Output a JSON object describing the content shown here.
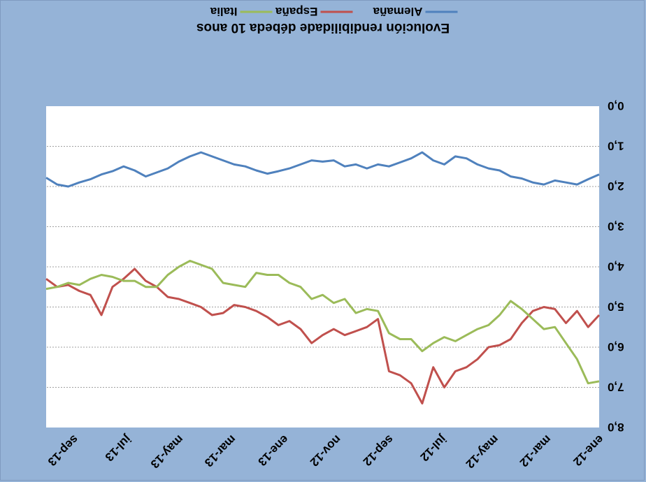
{
  "chart_data": {
    "type": "line",
    "title": "Evolución rendibilidade débeda 10 anos",
    "y_axis": {
      "reversed": true,
      "ylim": [
        0,
        8
      ],
      "ticks": [
        "0,0",
        "1,0",
        "2,0",
        "3,0",
        "4,0",
        "5,0",
        "6,0",
        "7,0",
        "8,0"
      ],
      "grid": true
    },
    "x_axis": {
      "tick_labels": [
        "ene-12",
        "mar-12",
        "may-12",
        "jul-12",
        "sep-12",
        "nov-12",
        "ene-13",
        "mar-13",
        "may-13",
        "jul-13",
        "sep-13"
      ],
      "position": "top",
      "label_rotation_deg": -45
    },
    "legend": {
      "position": "top"
    },
    "x_ticks_at": [
      0,
      0.095,
      0.19,
      0.285,
      0.38,
      0.475,
      0.57,
      0.665,
      0.76,
      0.855,
      0.95
    ],
    "series": [
      {
        "name": "Alemaña",
        "color": "#4f81bd",
        "x": [
          0,
          0.02,
          0.04,
          0.06,
          0.08,
          0.1,
          0.12,
          0.14,
          0.16,
          0.18,
          0.2,
          0.22,
          0.24,
          0.26,
          0.28,
          0.3,
          0.32,
          0.34,
          0.36,
          0.38,
          0.4,
          0.42,
          0.44,
          0.46,
          0.48,
          0.5,
          0.52,
          0.54,
          0.56,
          0.58,
          0.6,
          0.62,
          0.64,
          0.66,
          0.68,
          0.7,
          0.72,
          0.74,
          0.76,
          0.78,
          0.8,
          0.82,
          0.84,
          0.86,
          0.88,
          0.9,
          0.92,
          0.94,
          0.96,
          0.98,
          1
        ],
        "values": [
          1.7,
          1.82,
          1.95,
          1.9,
          1.85,
          1.95,
          1.9,
          1.8,
          1.75,
          1.6,
          1.55,
          1.45,
          1.3,
          1.25,
          1.45,
          1.35,
          1.15,
          1.3,
          1.4,
          1.5,
          1.45,
          1.55,
          1.45,
          1.5,
          1.35,
          1.38,
          1.35,
          1.45,
          1.55,
          1.62,
          1.68,
          1.6,
          1.5,
          1.45,
          1.35,
          1.25,
          1.15,
          1.25,
          1.38,
          1.55,
          1.65,
          1.75,
          1.6,
          1.5,
          1.62,
          1.7,
          1.82,
          1.9,
          2.0,
          1.95,
          1.78
        ]
      },
      {
        "name": "España",
        "color": "#c0504d",
        "x": [
          0,
          0.02,
          0.04,
          0.06,
          0.08,
          0.1,
          0.12,
          0.14,
          0.16,
          0.18,
          0.2,
          0.22,
          0.24,
          0.26,
          0.28,
          0.3,
          0.32,
          0.34,
          0.36,
          0.38,
          0.4,
          0.42,
          0.44,
          0.46,
          0.48,
          0.5,
          0.52,
          0.54,
          0.56,
          0.58,
          0.6,
          0.62,
          0.64,
          0.66,
          0.68,
          0.7,
          0.72,
          0.74,
          0.76,
          0.78,
          0.8,
          0.82,
          0.84,
          0.86,
          0.88,
          0.9,
          0.92,
          0.94,
          0.96,
          0.98,
          1
        ],
        "values": [
          5.2,
          5.5,
          5.1,
          5.4,
          5.05,
          5.0,
          5.1,
          5.4,
          5.8,
          5.95,
          6.0,
          6.3,
          6.5,
          6.6,
          7.0,
          6.5,
          7.4,
          6.9,
          6.7,
          6.6,
          5.3,
          5.5,
          5.6,
          5.7,
          5.55,
          5.7,
          5.9,
          5.55,
          5.35,
          5.45,
          5.25,
          5.1,
          5.0,
          4.95,
          5.15,
          5.2,
          5.0,
          4.9,
          4.8,
          4.75,
          4.5,
          4.35,
          4.05,
          4.3,
          4.5,
          5.2,
          4.7,
          4.6,
          4.45,
          4.5,
          4.3
        ]
      },
      {
        "name": "Italia",
        "color": "#9bbb59",
        "x": [
          0,
          0.02,
          0.04,
          0.06,
          0.08,
          0.1,
          0.12,
          0.14,
          0.16,
          0.18,
          0.2,
          0.22,
          0.24,
          0.26,
          0.28,
          0.3,
          0.32,
          0.34,
          0.36,
          0.38,
          0.4,
          0.42,
          0.44,
          0.46,
          0.48,
          0.5,
          0.52,
          0.54,
          0.56,
          0.58,
          0.6,
          0.62,
          0.64,
          0.66,
          0.68,
          0.7,
          0.72,
          0.74,
          0.76,
          0.78,
          0.8,
          0.82,
          0.84,
          0.86,
          0.88,
          0.9,
          0.92,
          0.94,
          0.96,
          0.98,
          1
        ],
        "values": [
          6.85,
          6.9,
          6.3,
          5.9,
          5.5,
          5.55,
          5.3,
          5.05,
          4.85,
          5.2,
          5.45,
          5.55,
          5.7,
          5.85,
          5.75,
          5.9,
          6.1,
          5.8,
          5.8,
          5.65,
          5.1,
          5.05,
          5.15,
          4.8,
          4.9,
          4.7,
          4.8,
          4.5,
          4.4,
          4.2,
          4.2,
          4.15,
          4.5,
          4.45,
          4.4,
          4.05,
          3.95,
          3.85,
          4.0,
          4.2,
          4.5,
          4.5,
          4.35,
          4.35,
          4.25,
          4.2,
          4.3,
          4.45,
          4.4,
          4.5,
          4.55
        ]
      }
    ]
  }
}
